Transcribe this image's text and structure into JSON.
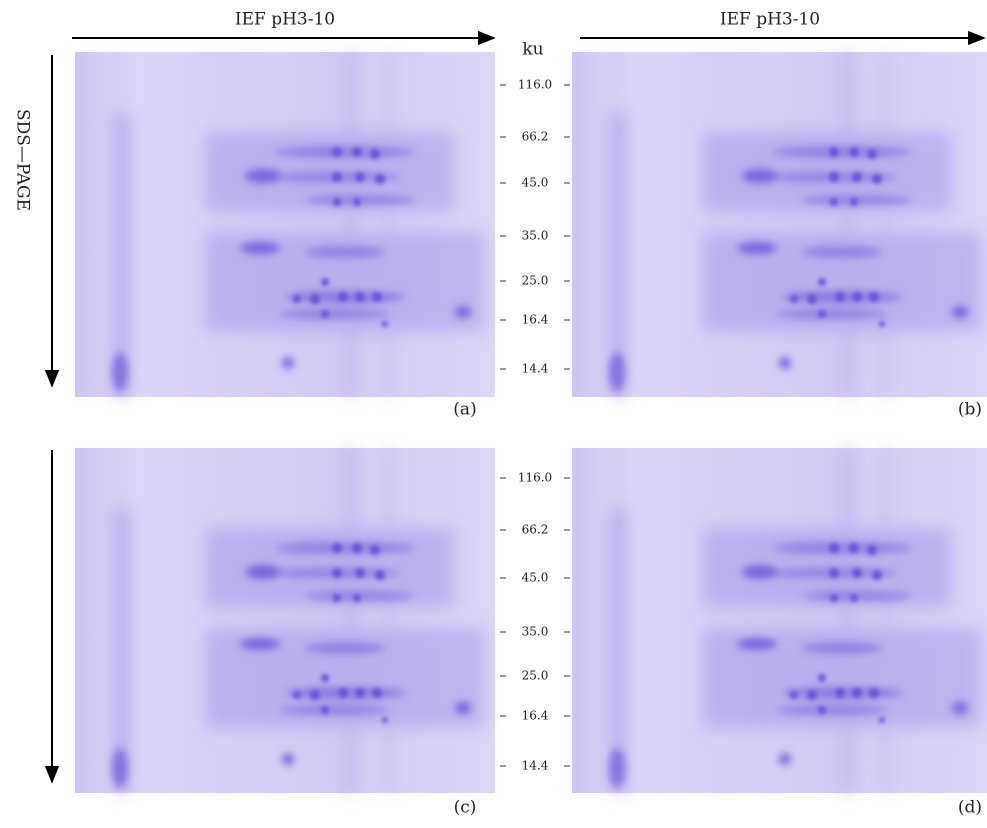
{
  "top_labels": [
    "IEF pH3-10",
    "IEF pH3-10"
  ],
  "unit": "ku",
  "side_label": "SDS—PAGE",
  "markers_top": [
    "116.0",
    "66.2",
    "45.0",
    "35.0",
    "25.0",
    "16.4",
    "14.4"
  ],
  "markers_bottom": [
    "116.0",
    "66.2",
    "45.0",
    "35.0",
    "25.0",
    "16.4",
    "14.4"
  ],
  "panels": [
    "(a)",
    "(b)",
    "(c)",
    "(d)"
  ]
}
